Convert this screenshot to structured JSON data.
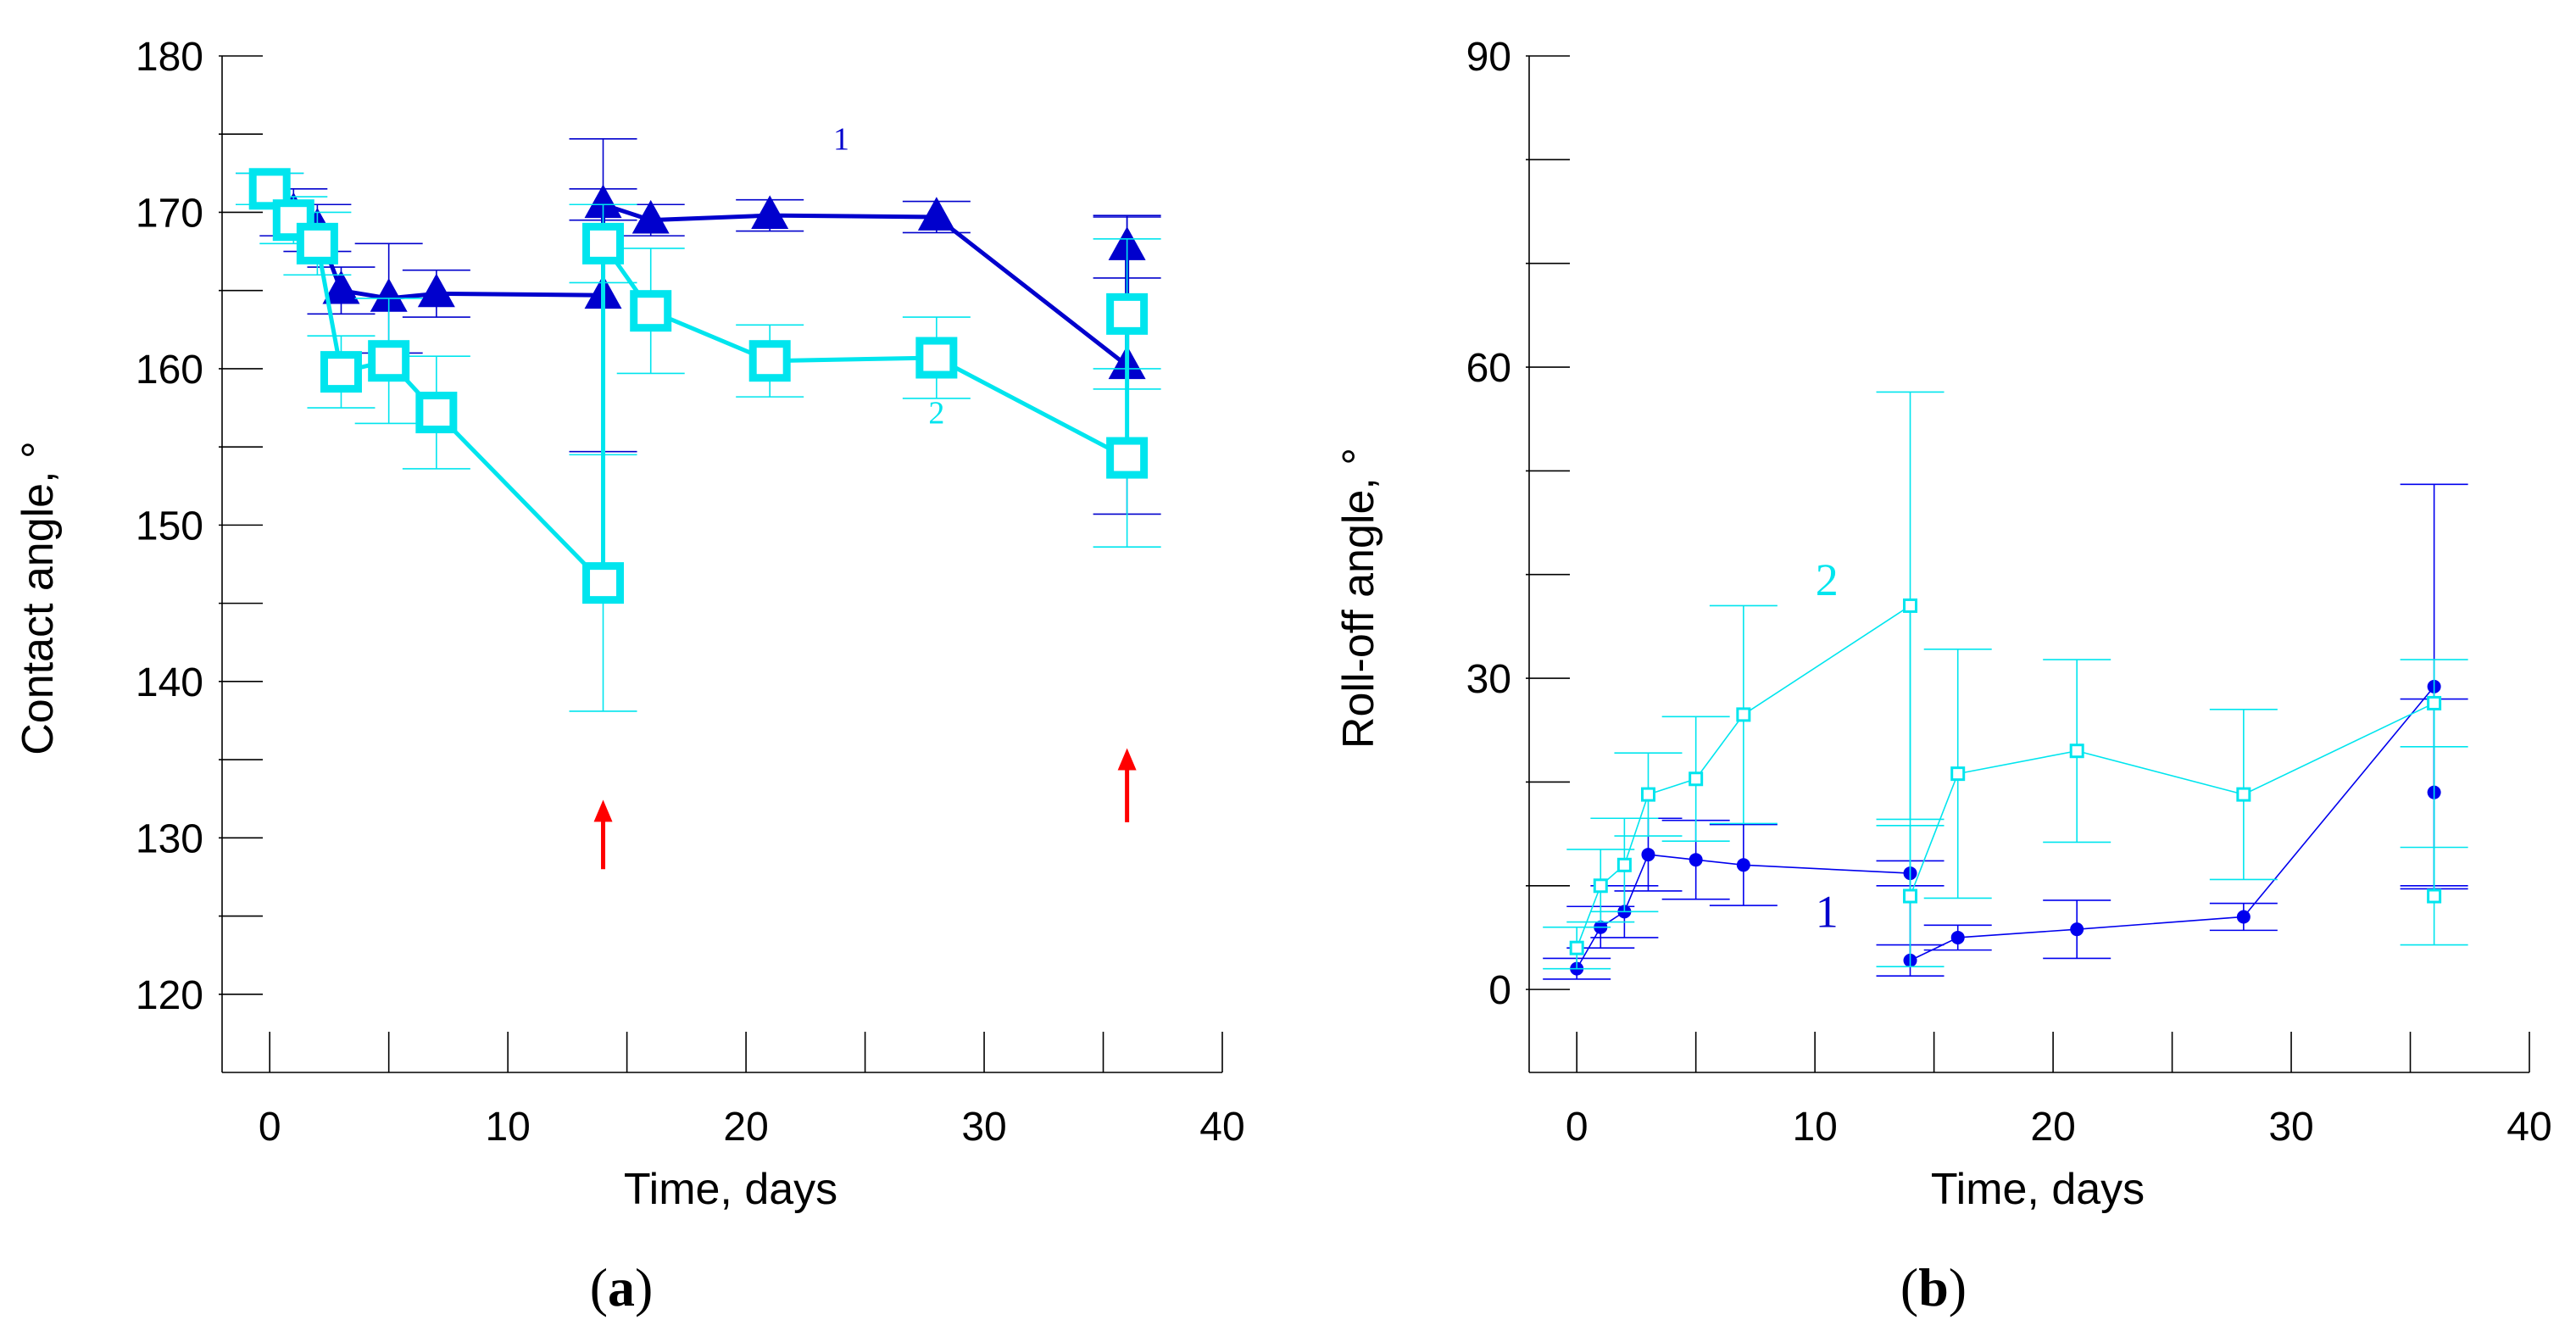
{
  "chart_data": [
    {
      "type": "line",
      "panel_label": {
        "open": "(",
        "letter": "a",
        "close": ")"
      },
      "xlabel": "Time, days",
      "ylabel": "Contact angle, °",
      "xlim": [
        -2,
        40
      ],
      "ylim": [
        115,
        180
      ],
      "xticks": [
        0,
        10,
        20,
        30,
        40
      ],
      "xminor": [
        5,
        15,
        25,
        35
      ],
      "yticks": [
        120,
        130,
        140,
        150,
        160,
        170,
        180
      ],
      "yminor": [
        125,
        135,
        145,
        155,
        165,
        175
      ],
      "series": [
        {
          "name": "1",
          "color": "#0000cd",
          "marker": "triangle",
          "line_width": 5,
          "x": [
            0,
            1,
            2,
            3,
            5,
            7,
            14,
            14,
            16,
            21,
            28,
            36,
            36
          ],
          "values": [
            171.5,
            170,
            169,
            165,
            164.5,
            164.8,
            164.7,
            170.5,
            169.5,
            169.8,
            169.7,
            160.2,
            167.8
          ],
          "errors": [
            1.0,
            1.5,
            1.5,
            1.5,
            3.5,
            1.5,
            10,
            1.0,
            1.0,
            1.0,
            1.0,
            9.5,
            2.0
          ]
        },
        {
          "name": "2",
          "color": "#00e5ee",
          "marker": "square",
          "line_width": 5,
          "x": [
            0,
            1,
            2,
            3,
            5,
            7,
            14,
            14,
            16,
            21,
            28,
            36,
            36
          ],
          "values": [
            171.5,
            169.5,
            168,
            159.8,
            160.5,
            157.2,
            146.3,
            168,
            163.7,
            160.5,
            160.7,
            154.3,
            163.5
          ],
          "errors": [
            1.0,
            1.5,
            2.0,
            2.3,
            4.0,
            3.6,
            8.2,
            2.5,
            4.0,
            2.3,
            2.6,
            5.7,
            4.8
          ]
        }
      ],
      "annotations": [
        {
          "text": "1",
          "x": 24,
          "y": 174,
          "color": "#0000cd"
        },
        {
          "text": "2",
          "x": 28,
          "y": 156.5,
          "color": "#00e5ee"
        }
      ],
      "arrows": [
        {
          "x": 14,
          "y_from": 128,
          "y_to": 132,
          "color": "#ff0000"
        },
        {
          "x": 36,
          "y_from": 131,
          "y_to": 135.3,
          "color": "#ff0000"
        }
      ]
    },
    {
      "type": "line",
      "panel_label": {
        "open": "(",
        "letter": "b",
        "close": ")"
      },
      "xlabel": "Time, days",
      "ylabel": "Roll-off angle, °",
      "xlim": [
        -2,
        40
      ],
      "ylim": [
        -8,
        90
      ],
      "xticks": [
        0,
        10,
        20,
        30,
        40
      ],
      "xminor": [
        5,
        15,
        25,
        35
      ],
      "yticks": [
        0,
        30,
        60,
        90
      ],
      "yminor": [
        10,
        20,
        40,
        50,
        70,
        80
      ],
      "series": [
        {
          "name": "1",
          "color": "#0000ee",
          "marker": "circle",
          "line_width": 1.6,
          "x": [
            0,
            1,
            2,
            3,
            5,
            7,
            14,
            14,
            16,
            21,
            28,
            36,
            36
          ],
          "values": [
            2,
            6,
            7.5,
            13,
            12.5,
            12,
            11.2,
            2.8,
            5,
            5.8,
            7,
            29.2,
            19
          ],
          "errors": [
            1.0,
            2.0,
            2.5,
            3.5,
            3.8,
            3.9,
            1.2,
            1.5,
            1.2,
            2.8,
            1.3,
            19.5,
            9.0
          ]
        },
        {
          "name": "2",
          "color": "#00e5ee",
          "marker": "square",
          "line_width": 1.6,
          "x": [
            0,
            1,
            2,
            3,
            5,
            7,
            14,
            14,
            16,
            21,
            28,
            36,
            36
          ],
          "values": [
            4,
            10,
            12,
            18.8,
            20.3,
            26.5,
            37,
            9,
            20.8,
            23,
            18.8,
            27.6,
            9
          ],
          "errors": [
            2.0,
            3.5,
            4.5,
            4.0,
            6.0,
            10.5,
            20.6,
            6.8,
            12.0,
            8.8,
            8.2,
            4.2,
            4.7
          ]
        }
      ],
      "annotations": [
        {
          "text": "1",
          "x": 10.5,
          "y": 6.0,
          "color": "#0000cd"
        },
        {
          "text": "2",
          "x": 10.5,
          "y": 38.0,
          "color": "#00e5ee"
        }
      ],
      "arrows": []
    }
  ]
}
